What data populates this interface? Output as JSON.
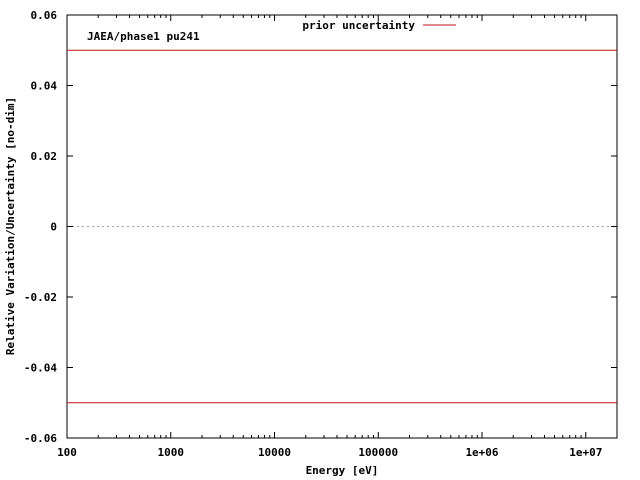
{
  "chart_data": {
    "type": "line",
    "title": "JAEA/phase1 pu241",
    "xlabel": "Energy [eV]",
    "ylabel": "Relative Variation/Uncertainty [no-dim]",
    "xscale": "log",
    "xlim": [
      100,
      20000000
    ],
    "ylim": [
      -0.06,
      0.06
    ],
    "x_major_ticks": [
      100,
      1000,
      10000,
      100000,
      1000000,
      10000000
    ],
    "x_tick_labels": [
      "100",
      "1000",
      "10000",
      "100000",
      "1e+06",
      "1e+07"
    ],
    "y_ticks": [
      -0.06,
      -0.04,
      -0.02,
      0,
      0.02,
      0.04,
      0.06
    ],
    "y_tick_labels": [
      "-0.06",
      "-0.04",
      "-0.02",
      "0",
      "0.02",
      "0.04",
      "0.06"
    ],
    "zero_line": {
      "y": 0,
      "style": "dotted",
      "color": "#a0a0a0"
    },
    "legend_position": "top-center",
    "series": [
      {
        "name": "prior uncertainty",
        "color": "#c01818",
        "x": [
          100,
          20000000
        ],
        "y": [
          0.05,
          0.05
        ]
      },
      {
        "name": "prior uncertainty",
        "color": "#c01818",
        "x": [
          100,
          20000000
        ],
        "y": [
          -0.05,
          -0.05
        ]
      }
    ]
  }
}
